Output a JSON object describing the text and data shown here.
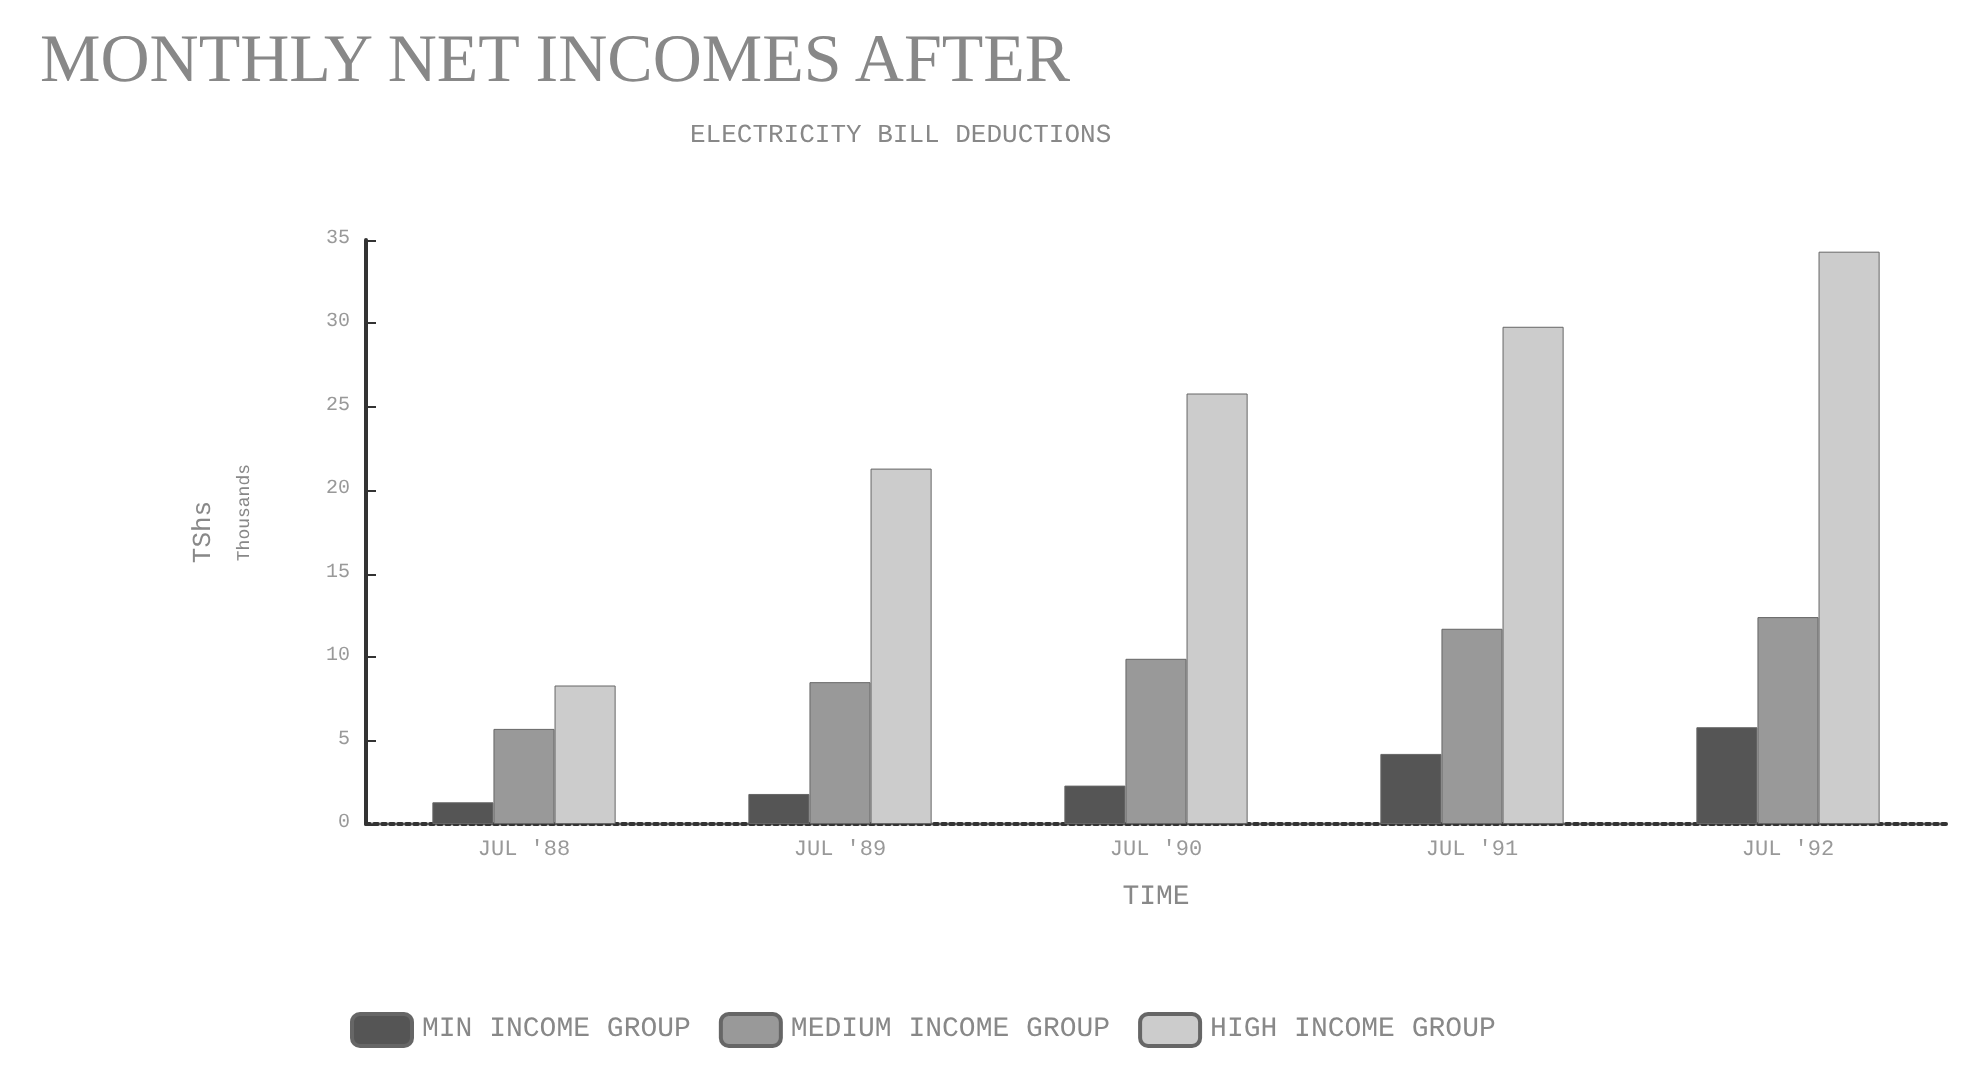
{
  "chart_data": {
    "type": "bar",
    "title": "MONTHLY NET INCOMES AFTER",
    "subtitle": "ELECTRICITY BILL DEDUCTIONS",
    "xlabel": "TIME",
    "ylabel": "TShs",
    "annotations": [
      "Thousands"
    ],
    "categories": [
      "JUL '88",
      "JUL '89",
      "JUL '90",
      "JUL '91",
      "JUL '92"
    ],
    "series": [
      {
        "name": "MIN INCOME GROUP",
        "color": "#555555",
        "values": [
          1.3,
          1.8,
          2.3,
          4.2,
          5.8
        ]
      },
      {
        "name": "MEDIUM INCOME GROUP",
        "color": "#999999",
        "values": [
          5.7,
          8.5,
          9.9,
          11.7,
          12.4
        ]
      },
      {
        "name": "HIGH INCOME GROUP",
        "color": "#cccccc",
        "values": [
          8.3,
          21.3,
          25.8,
          29.8,
          34.3
        ]
      }
    ],
    "ylim": [
      0,
      35
    ],
    "yticks": [
      0,
      5,
      10,
      15,
      20,
      25,
      30,
      35
    ],
    "grid": false,
    "legend": "bottom"
  }
}
